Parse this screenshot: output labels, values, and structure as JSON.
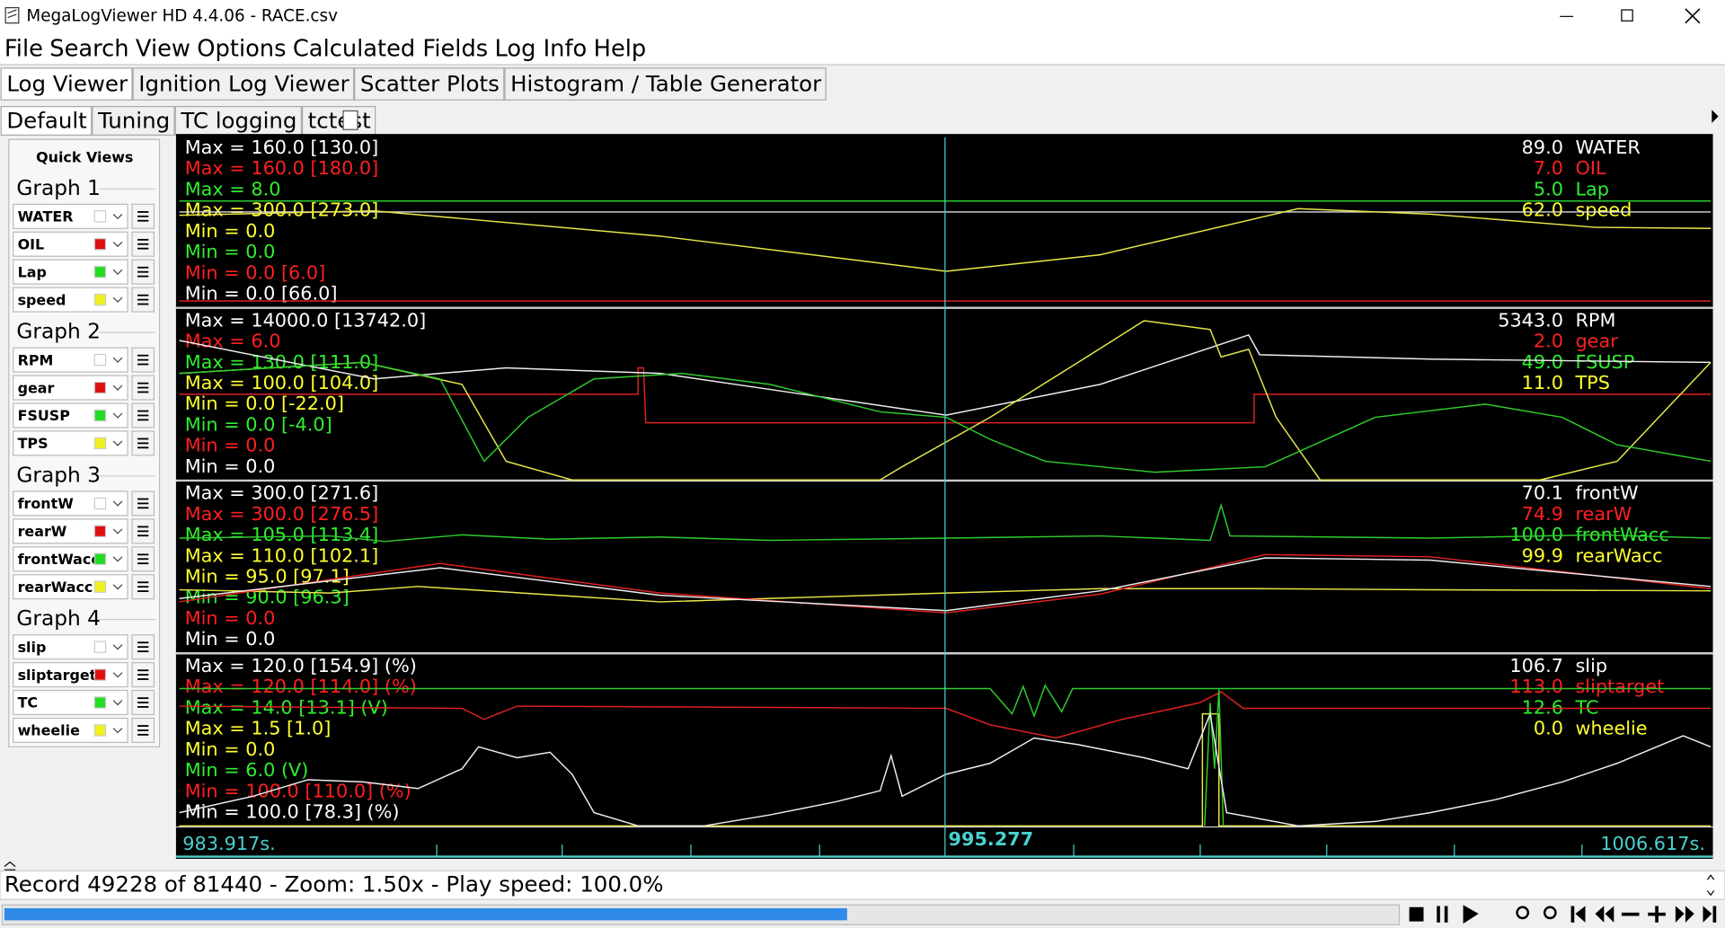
{
  "window": {
    "title": "MegaLogViewer HD 4.4.06 - RACE.csv"
  },
  "menu": [
    "File",
    "Search",
    "View",
    "Options",
    "Calculated Fields",
    "Log Info",
    "Help"
  ],
  "tabs": [
    "Log Viewer",
    "Ignition Log Viewer",
    "Scatter Plots",
    "Histogram / Table Generator"
  ],
  "subtabs": [
    "Default",
    "Tuning",
    "TC logging",
    "tctest"
  ],
  "quick_views": {
    "title": "Quick Views",
    "graphs": [
      {
        "name": "Graph 1",
        "fields": [
          "WATER",
          "OIL",
          "Lap",
          "speed"
        ]
      },
      {
        "name": "Graph 2",
        "fields": [
          "RPM",
          "gear",
          "FSUSP",
          "TPS"
        ]
      },
      {
        "name": "Graph 3",
        "fields": [
          "frontW",
          "rearW",
          "frontWacc",
          "rearWacc"
        ]
      },
      {
        "name": "Graph 4",
        "fields": [
          "slip",
          "sliptarget",
          "TC",
          "wheelie"
        ]
      }
    ]
  },
  "panels": [
    {
      "left": [
        "Max = 160.0 [130.0]",
        "Max = 160.0 [180.0]",
        "Max = 8.0",
        "Max = 300.0 [273.0]",
        "Min = 0.0",
        "Min = 0.0",
        "Min = 0.0 [6.0]",
        "Min = 0.0 [66.0]"
      ],
      "right": [
        {
          "value": "89.0",
          "name": "WATER"
        },
        {
          "value": "7.0",
          "name": "OIL"
        },
        {
          "value": "5.0",
          "name": "Lap"
        },
        {
          "value": "62.0",
          "name": "speed"
        }
      ]
    },
    {
      "left": [
        "Max = 14000.0 [13742.0]",
        "Max = 6.0",
        "Max = 130.0 [111.0]",
        "Max = 100.0 [104.0]",
        "Min = 0.0 [-22.0]",
        "Min = 0.0 [-4.0]",
        "Min = 0.0",
        "Min = 0.0"
      ],
      "right": [
        {
          "value": "5343.0",
          "name": "RPM"
        },
        {
          "value": "2.0",
          "name": "gear"
        },
        {
          "value": "49.0",
          "name": "FSUSP"
        },
        {
          "value": "11.0",
          "name": "TPS"
        }
      ]
    },
    {
      "left": [
        "Max = 300.0 [271.6]",
        "Max = 300.0 [276.5]",
        "Max = 105.0 [113.4]",
        "Max = 110.0 [102.1]",
        "Min = 95.0 [97.1]",
        "Min = 90.0 [96.3]",
        "Min = 0.0",
        "Min = 0.0"
      ],
      "right": [
        {
          "value": "70.1",
          "name": "frontW"
        },
        {
          "value": "74.9",
          "name": "rearW"
        },
        {
          "value": "100.0",
          "name": "frontWacc"
        },
        {
          "value": "99.9",
          "name": "rearWacc"
        }
      ]
    },
    {
      "left": [
        "Max = 120.0 [154.9] (%)",
        "Max = 120.0 [114.0] (%)",
        "Max = 14.0 [13.1] (V)",
        "Max = 1.5 [1.0]",
        "Min = 0.0",
        "Min = 6.0 (V)",
        "Min = 100.0 [110.0] (%)",
        "Min = 100.0 [78.3] (%)"
      ],
      "right": [
        {
          "value": "106.7",
          "name": "slip"
        },
        {
          "value": "113.0",
          "name": "sliptarget"
        },
        {
          "value": "12.6",
          "name": "TC"
        },
        {
          "value": "0.0",
          "name": "wheelie"
        }
      ]
    }
  ],
  "time_axis": {
    "start": "983.917s.",
    "cursor": "995.277",
    "end": "1006.617s."
  },
  "status": "Record 49228 of 81440 - Zoom: 1.50x - Play speed: 100.0%"
}
